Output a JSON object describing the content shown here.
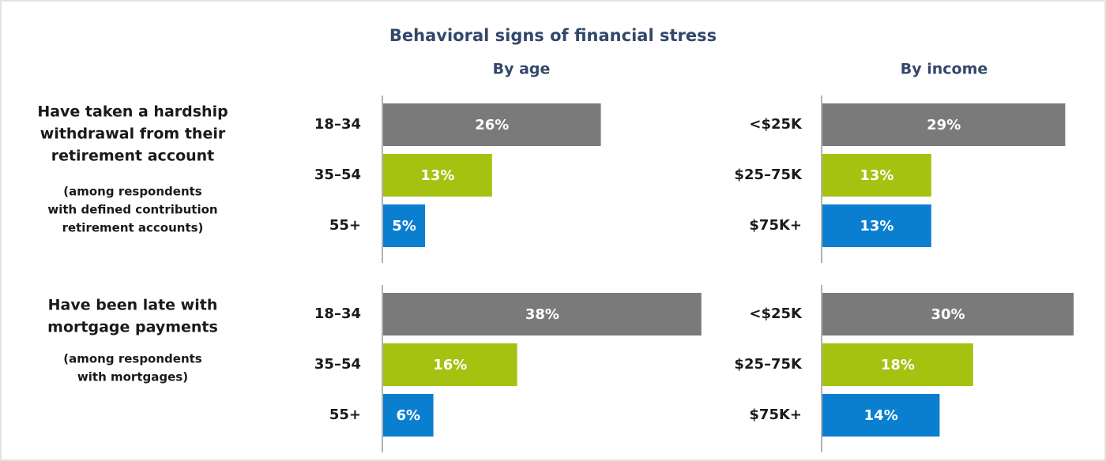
{
  "title": "Behavioral signs of financial stress",
  "columns": [
    "By age",
    "By income"
  ],
  "rows": [
    {
      "label": [
        "Have taken a hardship",
        "withdrawal from their",
        "retirement account"
      ],
      "note": [
        "(among respondents",
        "with defined contribution",
        "retirement accounts)"
      ]
    },
    {
      "label": [
        "Have been late with",
        "mortgage payments"
      ],
      "note": [
        "(among respondents",
        "with mortgages)"
      ]
    }
  ],
  "chart_data": [
    {
      "type": "bar",
      "orientation": "horizontal",
      "categories": [
        "18–34",
        "35–54",
        "55+"
      ],
      "values": [
        26,
        13,
        5
      ],
      "value_labels": [
        "26%",
        "13%",
        "5%"
      ],
      "colors": [
        "#7a7a7a",
        "#a4c20f",
        "#0a7fcf"
      ]
    },
    {
      "type": "bar",
      "orientation": "horizontal",
      "categories": [
        "<$25K",
        "$25–75K",
        "$75K+"
      ],
      "values": [
        29,
        13,
        13
      ],
      "value_labels": [
        "29%",
        "13%",
        "13%"
      ],
      "colors": [
        "#7a7a7a",
        "#a4c20f",
        "#0a7fcf"
      ]
    },
    {
      "type": "bar",
      "orientation": "horizontal",
      "categories": [
        "18–34",
        "35–54",
        "55+"
      ],
      "values": [
        38,
        16,
        6
      ],
      "value_labels": [
        "38%",
        "16%",
        "6%"
      ],
      "colors": [
        "#7a7a7a",
        "#a4c20f",
        "#0a7fcf"
      ]
    },
    {
      "type": "bar",
      "orientation": "horizontal",
      "categories": [
        "<$25K",
        "$25–75K",
        "$75K+"
      ],
      "values": [
        30,
        18,
        14
      ],
      "value_labels": [
        "30%",
        "18%",
        "14%"
      ],
      "colors": [
        "#7a7a7a",
        "#a4c20f",
        "#0a7fcf"
      ]
    }
  ]
}
